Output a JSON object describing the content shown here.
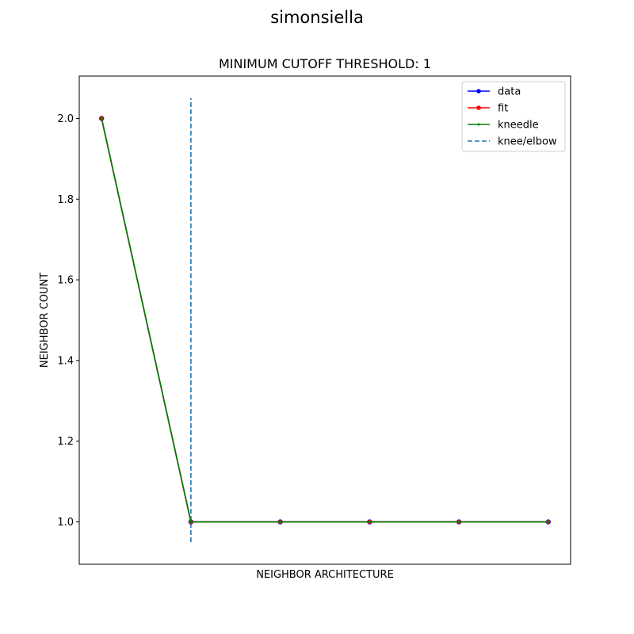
{
  "suptitle": "simonsiella",
  "chart_data": {
    "type": "line",
    "title": "MINIMUM CUTOFF THRESHOLD: 1",
    "xlabel": "NEIGHBOR ARCHITECTURE",
    "ylabel": "NEIGHBOR COUNT",
    "x": [
      1,
      2,
      3,
      4,
      5,
      6
    ],
    "xlim": [
      0.75,
      6.25
    ],
    "ylim": [
      0.895,
      2.105
    ],
    "yticks": [
      1.0,
      1.2,
      1.4,
      1.6,
      1.8,
      2.0
    ],
    "ytick_labels": [
      "1.0",
      "1.2",
      "1.4",
      "1.6",
      "1.8",
      "2.0"
    ],
    "grid": false,
    "legend_position": "top-right",
    "series": [
      {
        "name": "data",
        "values": [
          2,
          1,
          1,
          1,
          1,
          1
        ],
        "color": "#0000ff",
        "marker": "circle"
      },
      {
        "name": "fit",
        "values": [
          2,
          1,
          1,
          1,
          1,
          1
        ],
        "color": "#ff0000",
        "marker": "circle"
      },
      {
        "name": "kneedle",
        "values": [
          2,
          1,
          1,
          1,
          1,
          1
        ],
        "color": "#008000",
        "marker": "point"
      }
    ],
    "knee": {
      "name": "knee/elbow",
      "x": 2,
      "y_range": [
        0.95,
        2.05
      ],
      "color": "#1f77b4",
      "style": "dashed"
    }
  }
}
